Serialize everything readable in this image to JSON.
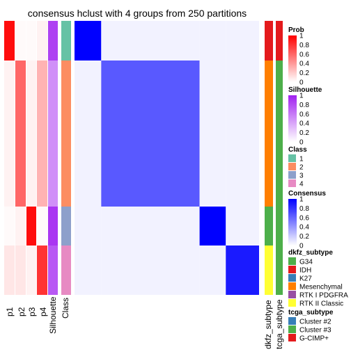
{
  "chart_data": {
    "type": "heatmap",
    "title": "consensus hclust with 4 groups from 250 partitions",
    "columns": {
      "annotations_left": [
        "p1",
        "p2",
        "p3",
        "p4",
        "Silhouette",
        "Class"
      ],
      "annotations_right": [
        "dkfz_subtype",
        "tcga_subtype"
      ]
    },
    "groups": [
      {
        "class": "1",
        "p1": 0.95,
        "p2": 0.02,
        "p3": 0.02,
        "p4": 0.05,
        "silhouette": 0.85,
        "consensus_within": 1.0
      },
      {
        "class": "2",
        "p1": 0.05,
        "p2": 0.6,
        "p3": 0.05,
        "p4": 0.3,
        "silhouette": 0.5,
        "consensus_within": 0.65
      },
      {
        "class": "3",
        "p1": 0.02,
        "p2": 0.05,
        "p3": 0.95,
        "p4": 0.02,
        "silhouette": 0.9,
        "consensus_within": 1.0
      },
      {
        "class": "4",
        "p1": 0.1,
        "p2": 0.1,
        "p3": 0.05,
        "p4": 0.8,
        "silhouette": 0.75,
        "consensus_within": 0.9
      }
    ],
    "legends": {
      "prob": {
        "title": "Prob",
        "ticks": [
          "1",
          "0.8",
          "0.6",
          "0.4",
          "0.2",
          "0"
        ]
      },
      "silhouette": {
        "title": "Silhouette",
        "ticks": [
          "1",
          "0.8",
          "0.6",
          "0.4",
          "0.2",
          "0"
        ]
      },
      "class": {
        "title": "Class",
        "items": [
          {
            "label": "1",
            "color": "#66C2A5"
          },
          {
            "label": "2",
            "color": "#FC8D62"
          },
          {
            "label": "3",
            "color": "#8DA0CB"
          },
          {
            "label": "4",
            "color": "#E78AC3"
          }
        ]
      },
      "consensus": {
        "title": "Consensus",
        "ticks": [
          "1",
          "0.8",
          "0.6",
          "0.4",
          "0.2",
          "0"
        ]
      },
      "dkfz": {
        "title": "dkfz_subtype",
        "items": [
          {
            "label": "G34",
            "color": "#4DAF4A"
          },
          {
            "label": "IDH",
            "color": "#E41A1C"
          },
          {
            "label": "K27",
            "color": "#377EB8"
          },
          {
            "label": "Mesenchymal",
            "color": "#FF7F00"
          },
          {
            "label": "RTK I PDGFRA",
            "color": "#984EA3"
          },
          {
            "label": "RTK II Classic",
            "color": "#FFFF33"
          }
        ]
      },
      "tcga": {
        "title": "tcga_subtype",
        "items": [
          {
            "label": "Cluster #2",
            "color": "#377EB8"
          },
          {
            "label": "Cluster #3",
            "color": "#4DAF4A"
          },
          {
            "label": "G-CIMP+",
            "color": "#E41A1C"
          }
        ]
      }
    }
  }
}
